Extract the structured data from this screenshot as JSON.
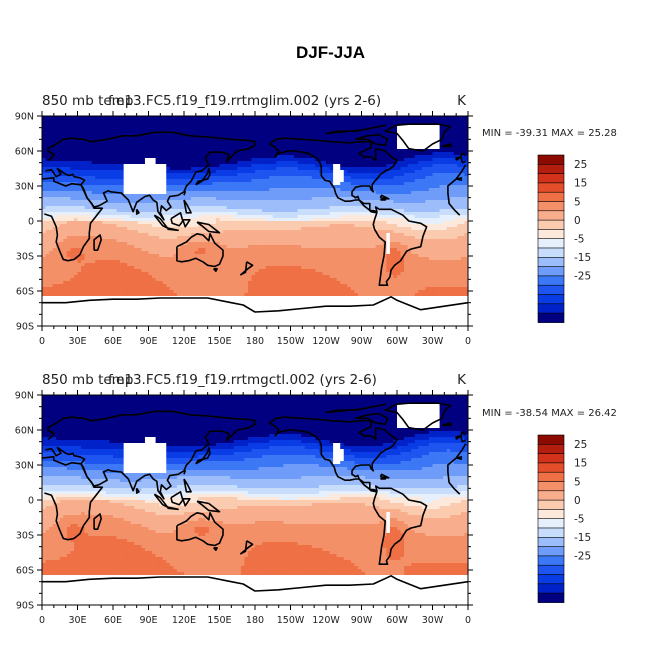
{
  "figure_title": "DJF-JJA",
  "colorbar": {
    "colors": [
      "#000080",
      "#0022c8",
      "#0a3ce6",
      "#1e55f0",
      "#3c78f5",
      "#6e9cf8",
      "#9cbdfa",
      "#c8dcfc",
      "#e6f0fc",
      "#fde8dc",
      "#fbcbb0",
      "#f8ae8c",
      "#f49068",
      "#f07046",
      "#e44e2a",
      "#d2321a",
      "#b41e0e",
      "#8c0a00"
    ],
    "labels": [
      "25",
      "15",
      "5",
      "0",
      "-5",
      "-15",
      "-25"
    ]
  },
  "chart_data": [
    {
      "type": "heatmap",
      "left_title": "850 mb temp",
      "overlay_title": "f.e13.FC5.f19_f19.rrtmglim.002 (yrs 2-6)",
      "units": "K",
      "min_max_text": "MIN = -39.31  MAX =  25.28",
      "min": -39.31,
      "max": 25.28,
      "y_ticks": [
        "90N",
        "60N",
        "30N",
        "0",
        "30S",
        "60S",
        "90S"
      ],
      "x_ticks": [
        "0",
        "30E",
        "60E",
        "90E",
        "120E",
        "150E",
        "180",
        "150W",
        "120W",
        "90W",
        "60W",
        "30W",
        "0"
      ],
      "lat_range": [
        -90,
        90
      ],
      "lon_range": [
        0,
        360
      ],
      "contour_levels": [
        -35,
        -30,
        -25,
        -20,
        -15,
        -10,
        -5,
        -2,
        0,
        2,
        5,
        10,
        15,
        20,
        25,
        30
      ]
    },
    {
      "type": "heatmap",
      "left_title": "850 mb temp",
      "overlay_title": "f.e13.FC5.f19_f19.rrtmgctl.002 (yrs 2-6)",
      "units": "K",
      "min_max_text": "MIN = -38.54  MAX =  26.42",
      "min": -38.54,
      "max": 26.42,
      "y_ticks": [
        "90N",
        "60N",
        "30N",
        "0",
        "30S",
        "60S",
        "90S"
      ],
      "x_ticks": [
        "0",
        "30E",
        "60E",
        "90E",
        "120E",
        "150E",
        "180",
        "150W",
        "120W",
        "90W",
        "60W",
        "30W",
        "0"
      ],
      "lat_range": [
        -90,
        90
      ],
      "lon_range": [
        0,
        360
      ],
      "contour_levels": [
        -35,
        -30,
        -25,
        -20,
        -15,
        -10,
        -5,
        -2,
        0,
        2,
        5,
        10,
        15,
        20,
        25,
        30
      ]
    }
  ]
}
